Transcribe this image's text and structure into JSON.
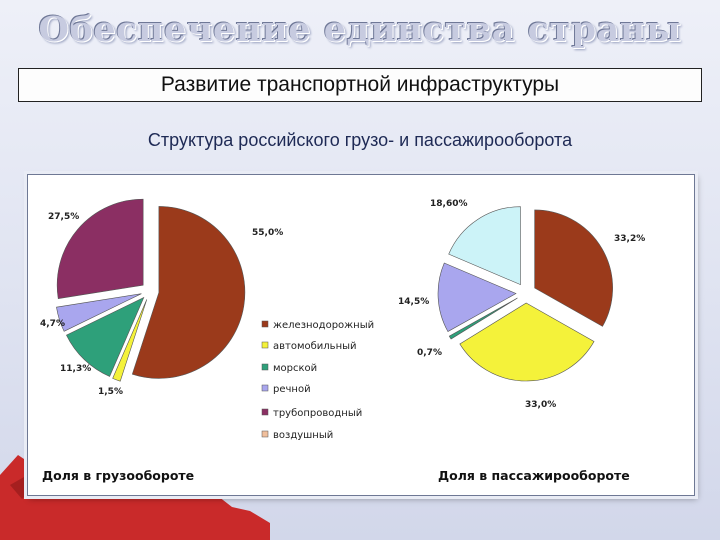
{
  "page": {
    "title": "Обеспечение единства страны",
    "subtitle": "Развитие транспортной инфраструктуры",
    "heading": "Структура российского грузо- и пассажирооборота"
  },
  "colors": {
    "railway": "#9b3a1b",
    "automobile": "#f4f23a",
    "sea": "#2ea07a",
    "river": "#a9a6ee",
    "pipeline": "#8b2f63",
    "air": "#f0bf9c",
    "passenger_air": "#ccf3f8"
  },
  "chart_data": [
    {
      "type": "pie",
      "caption": "Доля в грузообороте",
      "legend": [
        {
          "key": "railway",
          "label": "железнодорожный"
        },
        {
          "key": "automobile",
          "label": "автомобильный"
        },
        {
          "key": "sea",
          "label": "морской"
        },
        {
          "key": "river",
          "label": "речной"
        },
        {
          "key": "pipeline",
          "label": "трубопроводный"
        },
        {
          "key": "air",
          "label": "воздушный"
        }
      ],
      "slices": [
        {
          "key": "railway",
          "value": 55.0,
          "label": "55,0%"
        },
        {
          "key": "automobile",
          "value": 1.5,
          "label": "1,5%"
        },
        {
          "key": "sea",
          "value": 11.3,
          "label": "11,3%"
        },
        {
          "key": "river",
          "value": 4.7,
          "label": "4,7%"
        },
        {
          "key": "pipeline",
          "value": 27.5,
          "label": "27,5%"
        }
      ]
    },
    {
      "type": "pie",
      "caption": "Доля в пассажирообороте",
      "slices": [
        {
          "key": "railway",
          "value": 33.2,
          "label": "33,2%"
        },
        {
          "key": "automobile",
          "value": 33.0,
          "label": "33,0%"
        },
        {
          "key": "sea",
          "value": 0.7,
          "label": "0,7%"
        },
        {
          "key": "river",
          "value": 14.5,
          "label": "14,5%"
        },
        {
          "key": "passenger_air",
          "value": 18.6,
          "label": "18,60%"
        }
      ]
    }
  ]
}
